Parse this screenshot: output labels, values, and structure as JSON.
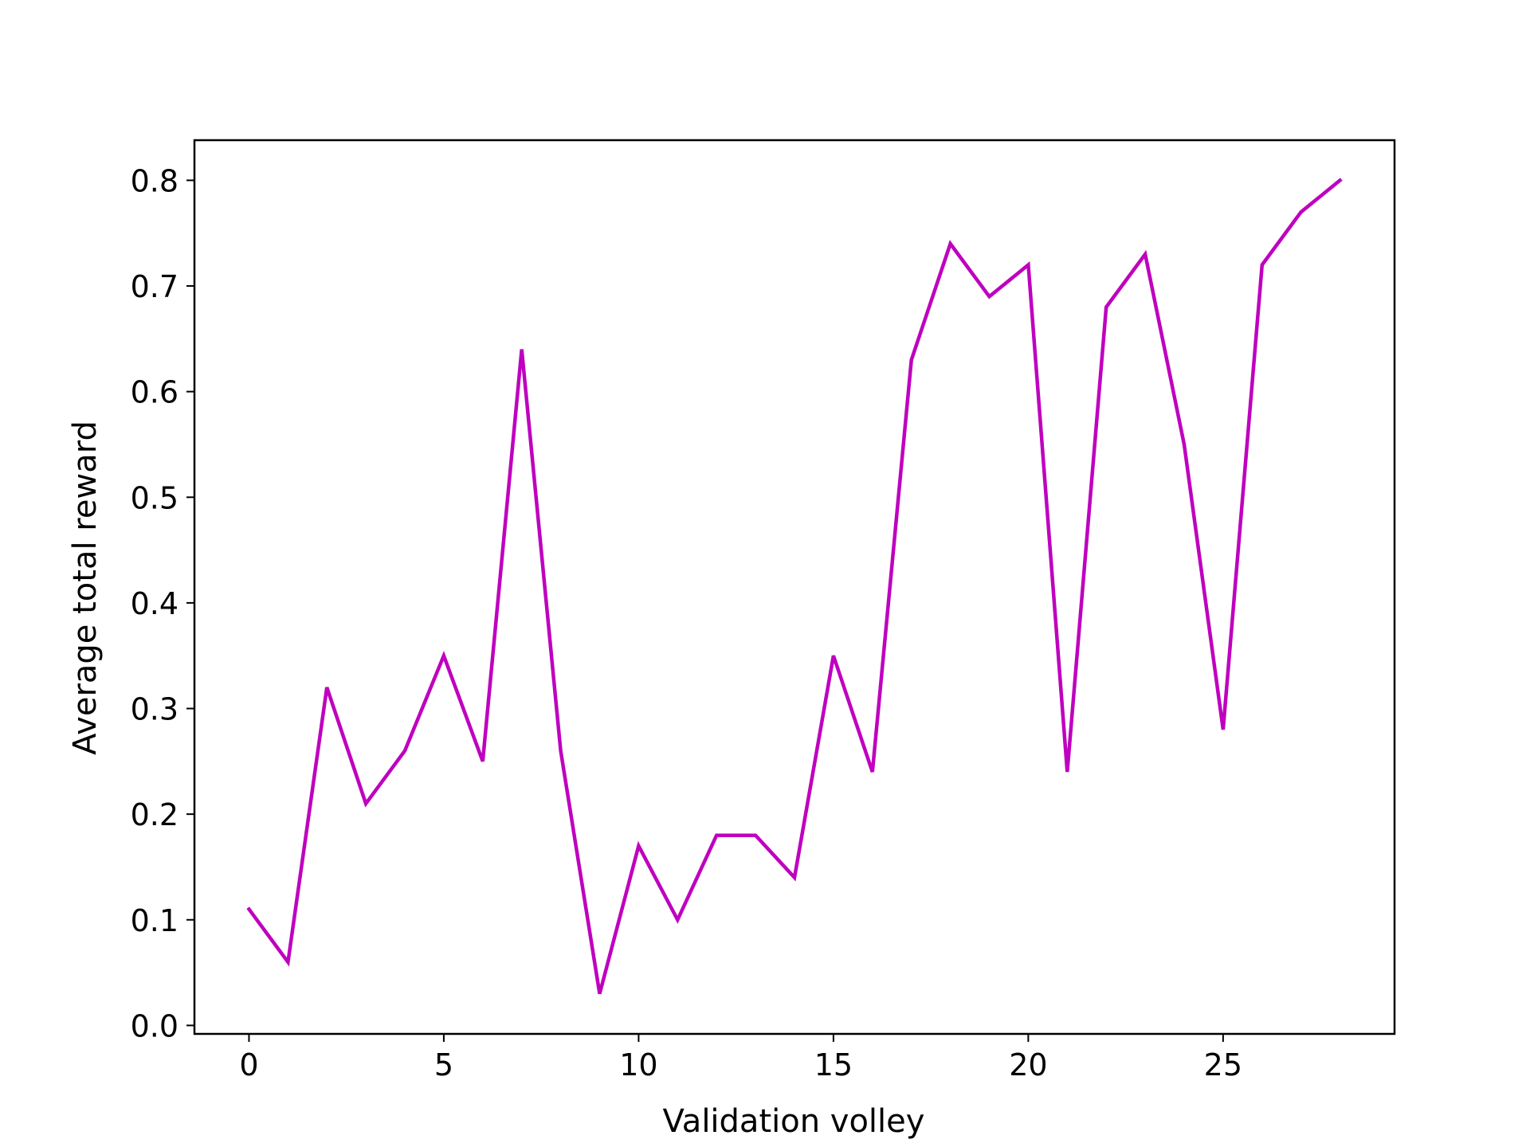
{
  "chart_data": {
    "type": "line",
    "title": "",
    "xlabel": "Validation volley",
    "ylabel": "Average total reward",
    "xlim": [
      -1.4,
      29.4
    ],
    "ylim": [
      -0.008,
      0.838
    ],
    "grid": false,
    "xticks": [
      0,
      5,
      10,
      15,
      20,
      25
    ],
    "xtick_labels": [
      "0",
      "5",
      "10",
      "15",
      "20",
      "25"
    ],
    "yticks": [
      0.0,
      0.1,
      0.2,
      0.3,
      0.4,
      0.5,
      0.6,
      0.7,
      0.8
    ],
    "ytick_labels": [
      "0.0",
      "0.1",
      "0.2",
      "0.3",
      "0.4",
      "0.5",
      "0.6",
      "0.7",
      "0.8"
    ],
    "series": [
      {
        "color": "#bf00bf",
        "x": [
          0,
          1,
          2,
          3,
          4,
          5,
          6,
          7,
          8,
          9,
          10,
          11,
          12,
          13,
          14,
          15,
          16,
          17,
          18,
          19,
          20,
          21,
          22,
          23,
          24,
          25,
          26,
          27,
          28
        ],
        "y": [
          0.11,
          0.06,
          0.32,
          0.21,
          0.26,
          0.35,
          0.25,
          0.64,
          0.26,
          0.03,
          0.17,
          0.1,
          0.18,
          0.18,
          0.14,
          0.35,
          0.24,
          0.63,
          0.74,
          0.69,
          0.72,
          0.24,
          0.68,
          0.73,
          0.55,
          0.28,
          0.72,
          0.77,
          0.8
        ]
      }
    ]
  }
}
